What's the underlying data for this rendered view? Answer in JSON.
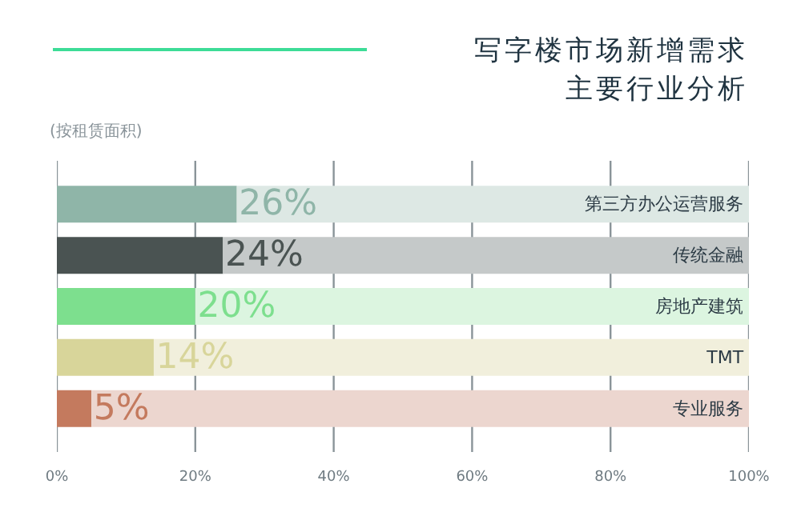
{
  "chart_data": {
    "type": "bar",
    "orientation": "horizontal",
    "stacked": true,
    "title": "写字楼市场新增需求主要行业分析",
    "subtitle": "(按租赁面积)",
    "categories": [
      "第三方办公运营服务",
      "传统金融",
      "房地产建筑",
      "TMT",
      "专业服务"
    ],
    "series": [
      {
        "colors": [
          "#8fb5a8",
          "#4a5352",
          "#7ddf8e",
          "#d8d59a",
          "#c47a5e"
        ],
        "values": [
          26,
          24,
          20,
          14,
          5
        ],
        "value_labels": [
          "26%",
          "24%",
          "20%",
          "14%",
          "5%"
        ]
      },
      {
        "colors": [
          "#dde8e4",
          "#c5c9c9",
          "#dcf5e0",
          "#f1efdc",
          "#ecd6cf"
        ],
        "values": [
          74,
          76,
          80,
          86,
          95
        ]
      }
    ],
    "xlim": [
      0,
      100
    ],
    "xticks": [
      {
        "value": 0,
        "label": "0%"
      },
      {
        "value": 20,
        "label": "20%"
      },
      {
        "value": 40,
        "label": "40%"
      },
      {
        "value": 60,
        "label": "60%"
      },
      {
        "value": 80,
        "label": "80%"
      },
      {
        "value": 100,
        "label": "100%"
      }
    ],
    "grid": "x"
  }
}
